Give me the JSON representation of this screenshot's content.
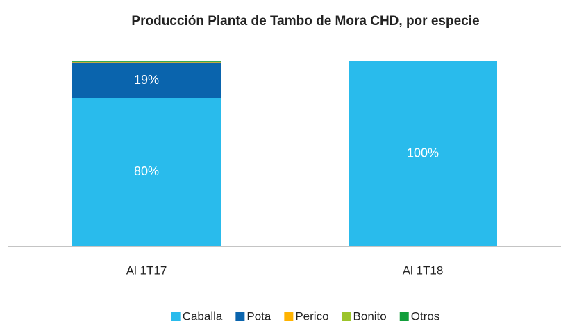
{
  "chart_data": {
    "type": "stacked_bar",
    "title": "Producción Planta de Tambo de Mora CHD, por especie",
    "categories": [
      "Al 1T17",
      "Al 1T18"
    ],
    "ylim": [
      0,
      100
    ],
    "series": [
      {
        "name": "Caballa",
        "color": "#29bbec",
        "values": [
          80,
          100
        ],
        "value_labels": [
          "80%",
          "100%"
        ]
      },
      {
        "name": "Pota",
        "color": "#0a64ad",
        "values": [
          19,
          0
        ],
        "value_labels": [
          "19%",
          null
        ]
      },
      {
        "name": "Perico",
        "color": "#ffb300",
        "values": [
          0.3,
          0
        ],
        "value_labels": [
          null,
          null
        ]
      },
      {
        "name": "Bonito",
        "color": "#9cc42b",
        "values": [
          0.4,
          0
        ],
        "value_labels": [
          null,
          null
        ]
      },
      {
        "name": "Otros",
        "color": "#119e3b",
        "values": [
          0.3,
          0
        ],
        "value_labels": [
          null,
          null
        ]
      }
    ],
    "legend": "bottom"
  }
}
